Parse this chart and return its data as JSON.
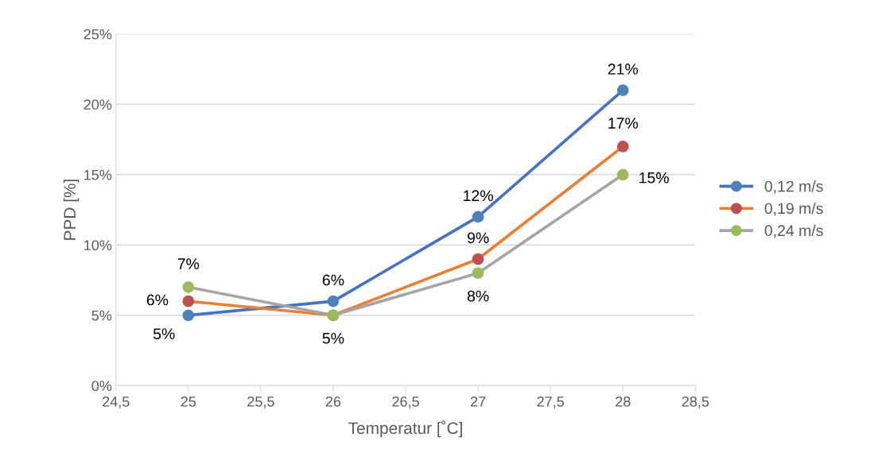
{
  "chart_data": {
    "type": "line",
    "xlabel": "Temperatur [˚C]",
    "ylabel": "PPD [%]",
    "x": [
      25,
      26,
      27,
      28
    ],
    "series": [
      {
        "name": "0,12 m/s",
        "color": "#4472c4",
        "colors": [
          "#4f81bd",
          "#4f81bd",
          "#4f81bd",
          "#4f81bd"
        ],
        "values": [
          5,
          6,
          12,
          21
        ],
        "value_labels": [
          "5%",
          "6%",
          "12%",
          "21%"
        ]
      },
      {
        "name": "0,19 m/s",
        "color": "#ed7d31",
        "colors": [
          "#c0504d",
          "#c0504d",
          "#c0504d",
          "#c0504d"
        ],
        "values": [
          6,
          5,
          9,
          17
        ],
        "value_labels": [
          "6%",
          null,
          "9%",
          "17%"
        ]
      },
      {
        "name": "0,24 m/s",
        "color": "#a5a5a5",
        "colors": [
          "#9bbb59",
          "#9bbb59",
          "#9bbb59",
          "#9bbb59"
        ],
        "values": [
          7,
          5,
          8,
          15
        ],
        "value_labels": [
          "7%",
          "5%",
          "8%",
          "15%"
        ]
      }
    ],
    "xlim": [
      24.5,
      28.5
    ],
    "xticks": [
      {
        "value": 24.5,
        "label": "24,5"
      },
      25,
      {
        "value": 25.5,
        "label": "25,5"
      },
      26,
      {
        "value": 26.5,
        "label": "26,5"
      },
      27,
      {
        "value": 27.5,
        "label": "27,5"
      },
      28,
      {
        "value": 28.5,
        "label": "28,5"
      }
    ],
    "ylim": [
      0,
      25
    ],
    "yticks": [
      {
        "value": 0,
        "label": "0%"
      },
      {
        "value": 5,
        "label": "5%"
      },
      {
        "value": 10,
        "label": "10%"
      },
      {
        "value": 15,
        "label": "15%"
      },
      {
        "value": 20,
        "label": "20%"
      },
      {
        "value": 25,
        "label": "25%"
      }
    ],
    "grid": "y",
    "legend": "right",
    "marker": "circle",
    "line_style": "solid"
  }
}
